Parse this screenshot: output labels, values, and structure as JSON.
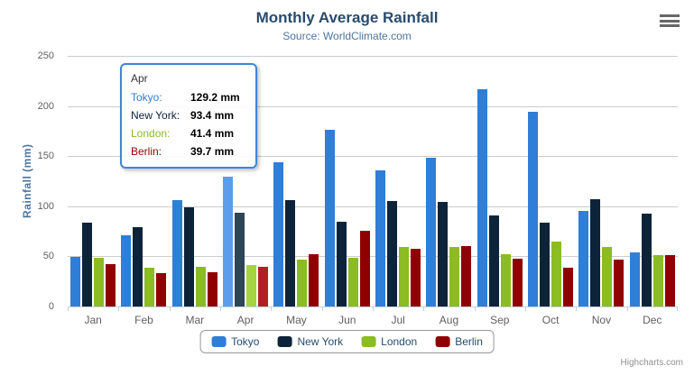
{
  "header": {
    "title": "Monthly Average Rainfall",
    "subtitle": "Source: WorldClimate.com"
  },
  "toolbar": {
    "menu_icon": "hamburger-icon"
  },
  "chart_data": {
    "type": "bar",
    "title": "Monthly Average Rainfall",
    "subtitle": "Source: WorldClimate.com",
    "categories": [
      "Jan",
      "Feb",
      "Mar",
      "Apr",
      "May",
      "Jun",
      "Jul",
      "Aug",
      "Sep",
      "Oct",
      "Nov",
      "Dec"
    ],
    "series": [
      {
        "name": "Tokyo",
        "color": "#2f7ed8",
        "hover_color": "#5b9de8",
        "values": [
          49.9,
          71.5,
          106.4,
          129.2,
          144.0,
          176.0,
          135.6,
          148.5,
          216.4,
          194.1,
          95.6,
          54.4
        ]
      },
      {
        "name": "New York",
        "color": "#0d233a",
        "hover_color": "#2e4457",
        "values": [
          83.6,
          78.8,
          98.5,
          93.4,
          106.0,
          84.5,
          105.0,
          104.3,
          91.2,
          83.5,
          106.6,
          92.3
        ]
      },
      {
        "name": "London",
        "color": "#8bbc21",
        "hover_color": "#a6d440",
        "values": [
          48.9,
          38.8,
          39.3,
          41.4,
          47.0,
          48.3,
          59.0,
          59.6,
          52.4,
          65.2,
          59.3,
          51.2
        ]
      },
      {
        "name": "Berlin",
        "color": "#910000",
        "hover_color": "#b02222",
        "values": [
          42.4,
          33.2,
          34.5,
          39.7,
          52.6,
          75.5,
          57.4,
          60.4,
          47.6,
          39.1,
          46.8,
          51.1
        ]
      }
    ],
    "xlabel": "",
    "ylabel": "Rainfall (mm)",
    "ylim": [
      0,
      250
    ],
    "yticks": [
      0,
      50,
      100,
      150,
      200,
      250
    ],
    "grid": true,
    "legend_position": "bottom",
    "highlighted_category": "Apr",
    "colors": {
      "grid_line": "#cccccc",
      "axis_line": "#c0d0e0",
      "tick_label": "#606060",
      "title_text": "#274b6d",
      "subtitle_text": "#4d759e"
    }
  },
  "tooltip": {
    "header": "Apr",
    "border_color": "#3e86d8",
    "rows": [
      {
        "label": "Tokyo:",
        "value": "129.2 mm",
        "color": "#2f7ed8"
      },
      {
        "label": "New York:",
        "value": "93.4 mm",
        "color": "#0d233a"
      },
      {
        "label": "London:",
        "value": "41.4 mm",
        "color": "#8bbc21"
      },
      {
        "label": "Berlin:",
        "value": "39.7 mm",
        "color": "#910000"
      }
    ]
  },
  "legend": {
    "items": [
      {
        "label": "Tokyo",
        "color": "#2f7ed8"
      },
      {
        "label": "New York",
        "color": "#0d233a"
      },
      {
        "label": "London",
        "color": "#8bbc21"
      },
      {
        "label": "Berlin",
        "color": "#910000"
      }
    ]
  },
  "credits": {
    "text": "Highcharts.com"
  }
}
